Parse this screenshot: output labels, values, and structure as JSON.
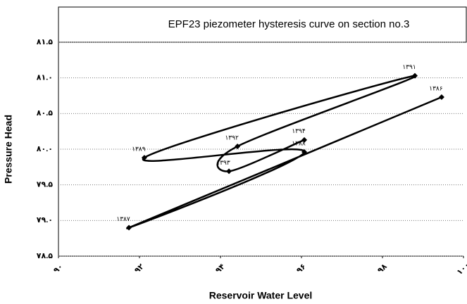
{
  "chart_data": {
    "type": "line",
    "title": "EPF23 piezometer hysteresis curve on section no.3",
    "x_label": "Reservoir Water Level",
    "y_label": "Pressure Head",
    "xlim": [
      90,
      100
    ],
    "ylim": [
      78.5,
      81.5
    ],
    "xticks": [
      {
        "value": 90,
        "label": "۹۰"
      },
      {
        "value": 92,
        "label": "۹۲"
      },
      {
        "value": 94,
        "label": "۹۴"
      },
      {
        "value": 96,
        "label": "۹۶"
      },
      {
        "value": 98,
        "label": "۹۸"
      },
      {
        "value": 100,
        "label": "۱۰۰"
      }
    ],
    "yticks": [
      {
        "value": 78.5,
        "label": "۷۸.۵"
      },
      {
        "value": 79,
        "label": "۷۹.۰"
      },
      {
        "value": 79.5,
        "label": "۷۹.۵"
      },
      {
        "value": 80,
        "label": "۸۰.۰"
      },
      {
        "value": 80.5,
        "label": "۸۰.۵"
      },
      {
        "value": 81,
        "label": "۸۱.۰"
      },
      {
        "value": 81.5,
        "label": "۸۱.۵"
      }
    ],
    "grid": true,
    "series": [
      {
        "color": "#000000",
        "x": [
          99.46,
          91.74,
          96.07,
          92.12,
          98.8,
          94.42,
          94.21,
          96.07
        ],
        "values": [
          80.73,
          78.9,
          79.96,
          79.88,
          81.03,
          80.04,
          79.69,
          80.13
        ],
        "point_labels": [
          "۱۳۸۶",
          "۱۳۸۷",
          "۱۳۸۸",
          "۱۳۸۹",
          "۱۳۹۱",
          "۱۳۹۲",
          "۱۳۹۳",
          "۱۳۹۴"
        ]
      }
    ]
  }
}
